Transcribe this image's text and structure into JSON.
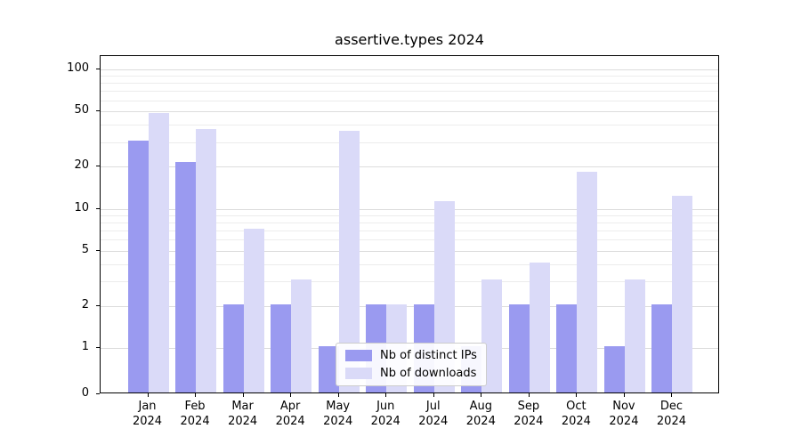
{
  "title": "assertive.types 2024",
  "x_axis": {
    "months": [
      "Jan",
      "Feb",
      "Mar",
      "Apr",
      "May",
      "Jun",
      "Jul",
      "Aug",
      "Sep",
      "Oct",
      "Nov",
      "Dec"
    ],
    "year": "2024"
  },
  "y_axis": {
    "tick_labels": [
      "0",
      "1",
      "2",
      "5",
      "10",
      "20",
      "50",
      "100"
    ]
  },
  "legend": {
    "items": [
      {
        "label": "Nb of distinct IPs",
        "color": "#9a9af0"
      },
      {
        "label": "Nb of downloads",
        "color": "#dadaf8"
      }
    ]
  },
  "chart_data": {
    "type": "bar",
    "scale": "symlog",
    "title": "assertive.types 2024",
    "categories": [
      "Jan 2024",
      "Feb 2024",
      "Mar 2024",
      "Apr 2024",
      "May 2024",
      "Jun 2024",
      "Jul 2024",
      "Aug 2024",
      "Sep 2024",
      "Oct 2024",
      "Nov 2024",
      "Dec 2024"
    ],
    "series": [
      {
        "name": "Nb of distinct IPs",
        "color": "#9a9af0",
        "values": [
          30,
          21,
          2,
          2,
          1,
          2,
          2,
          1,
          2,
          2,
          1,
          2
        ]
      },
      {
        "name": "Nb of downloads",
        "color": "#dadaf8",
        "values": [
          47,
          36,
          7,
          3,
          35,
          2,
          11,
          3,
          4,
          18,
          3,
          12
        ]
      }
    ],
    "ylim": [
      0,
      100
    ],
    "yticks": [
      0,
      1,
      2,
      5,
      10,
      20,
      50,
      100
    ],
    "minor_gridlines": [
      3,
      4,
      6,
      7,
      8,
      9,
      30,
      40,
      60,
      70,
      80,
      90
    ],
    "grid": true,
    "legend_position": "lower-center-inside"
  }
}
